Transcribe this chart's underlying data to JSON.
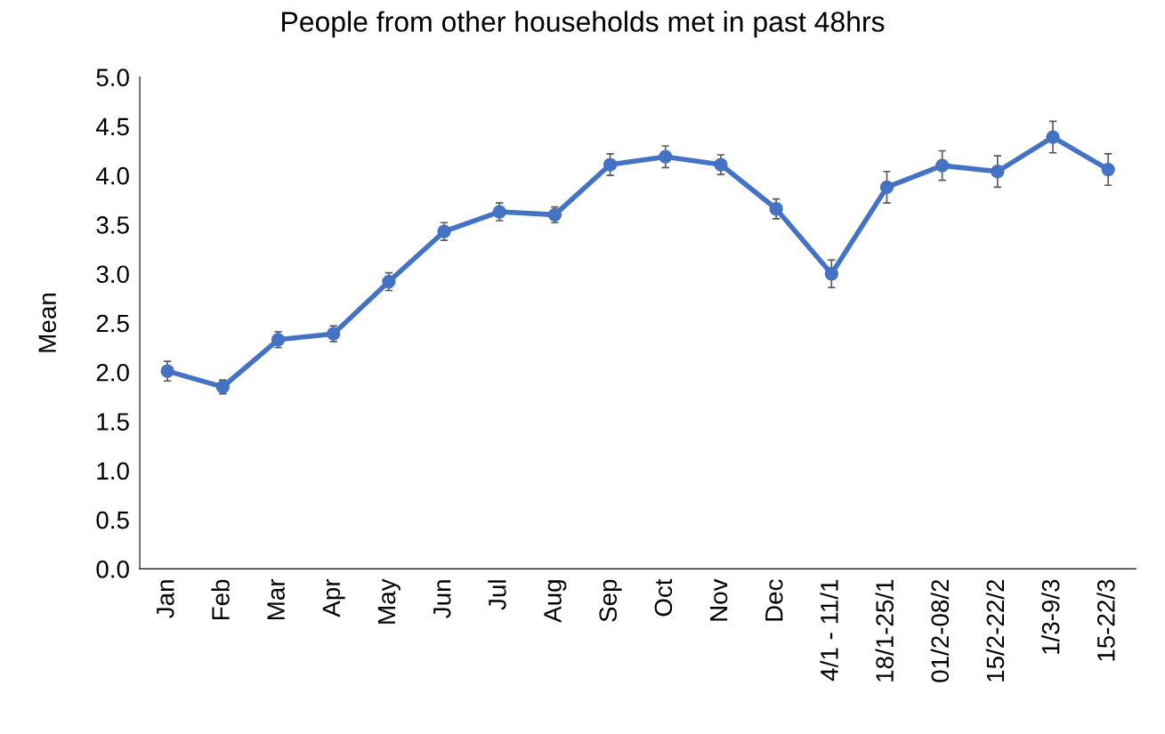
{
  "chart_data": {
    "type": "line",
    "title": "People from other households met in past 48hrs",
    "ylabel": "Mean",
    "categories": [
      "Jan",
      "Feb",
      "Mar",
      "Apr",
      "May",
      "Jun",
      "Jul",
      "Aug",
      "Sep",
      "Oct",
      "Nov",
      "Dec",
      "4/1 - 11/1",
      "18/1-25/1",
      "01/2-08/2",
      "15/2-22/2",
      "1/3-9/3",
      "15-22/3"
    ],
    "series": [
      {
        "color": "#4472c4",
        "values": [
          2.01,
          1.85,
          2.33,
          2.39,
          2.92,
          3.43,
          3.63,
          3.6,
          4.11,
          4.19,
          4.11,
          3.66,
          3.0,
          3.88,
          4.1,
          4.04,
          4.39,
          4.06
        ],
        "errors": [
          0.1,
          0.07,
          0.08,
          0.08,
          0.09,
          0.09,
          0.09,
          0.08,
          0.11,
          0.11,
          0.1,
          0.1,
          0.14,
          0.16,
          0.15,
          0.16,
          0.16,
          0.16
        ]
      }
    ],
    "ylim": [
      0,
      5
    ],
    "yticks": [
      {
        "value": 0,
        "label": "0.0"
      },
      {
        "value": 0.5,
        "label": "0.5"
      },
      {
        "value": 1,
        "label": "1.0"
      },
      {
        "value": 1.5,
        "label": "1.5"
      },
      {
        "value": 2,
        "label": "2.0"
      },
      {
        "value": 2.5,
        "label": "2.5"
      },
      {
        "value": 3,
        "label": "3.0"
      },
      {
        "value": 3.5,
        "label": "3.5"
      },
      {
        "value": 4,
        "label": "4.0"
      },
      {
        "value": 4.5,
        "label": "4.5"
      },
      {
        "value": 5,
        "label": "5.0"
      }
    ],
    "grid": false,
    "marker": "circle",
    "line_style": "solid"
  }
}
